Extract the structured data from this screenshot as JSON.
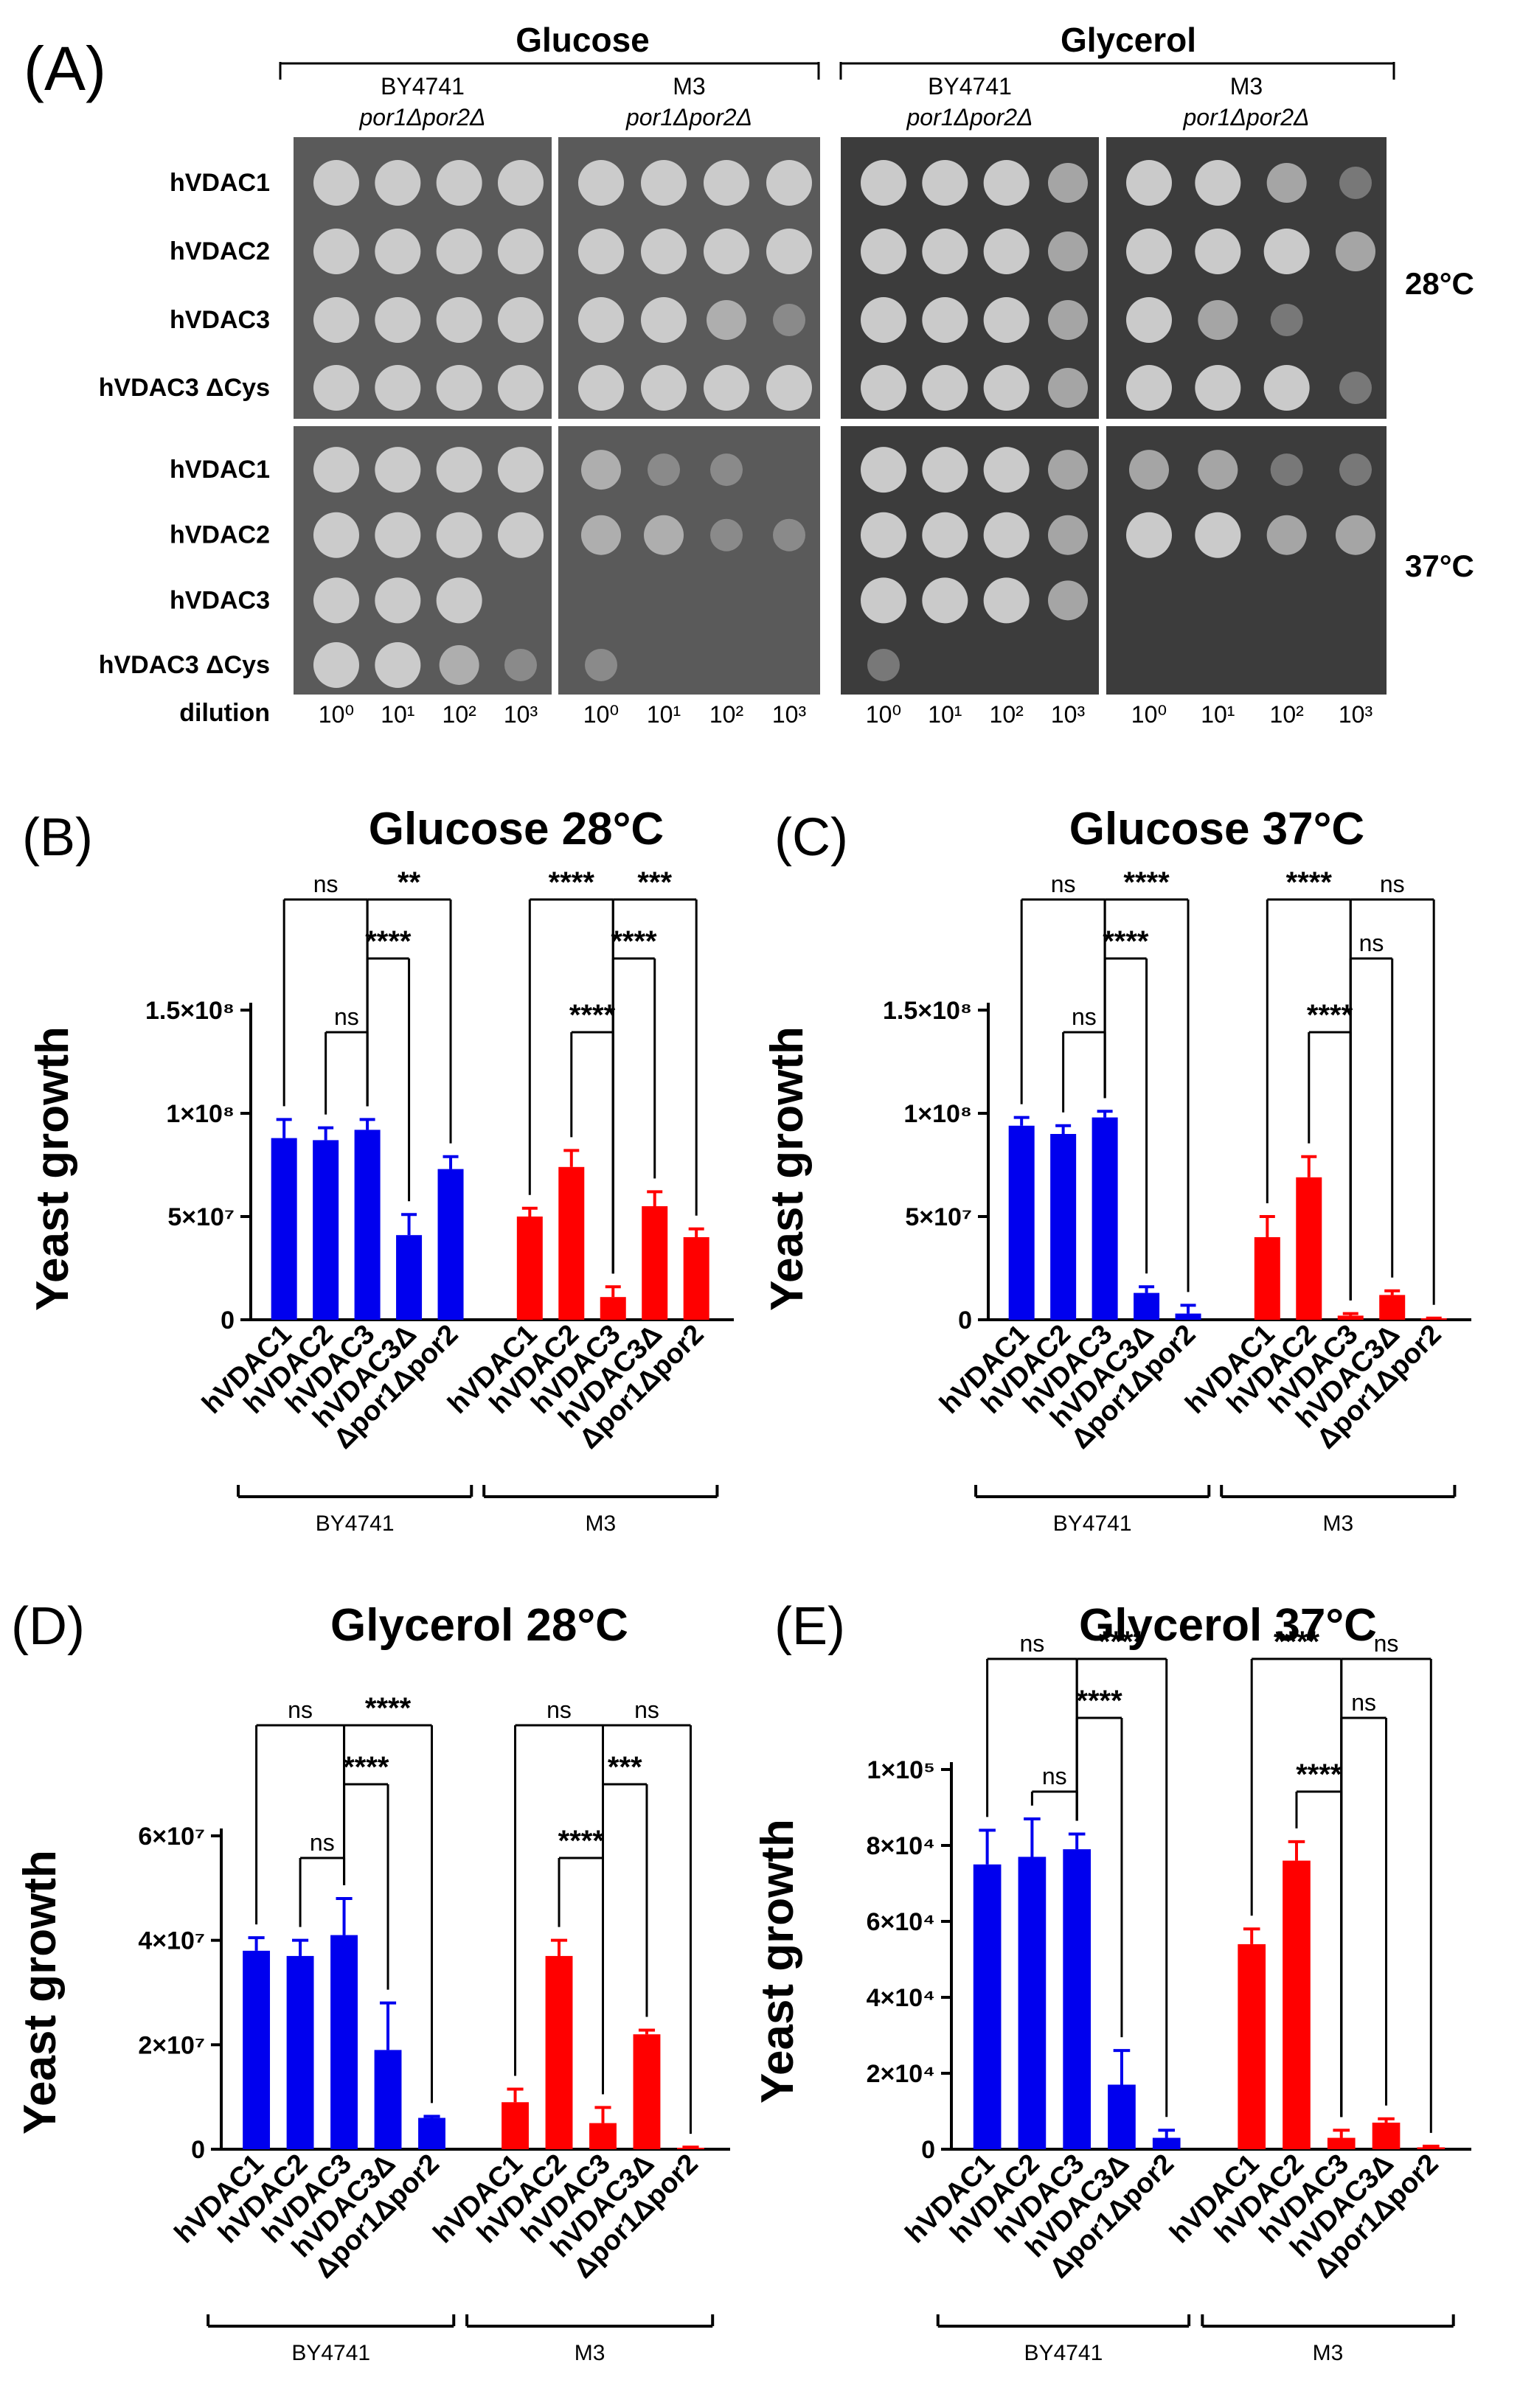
{
  "colors": {
    "blue": "#0000ee",
    "red": "#ff0000",
    "plate_dark": "#3c3c3c",
    "plate_top": "#5a5a5a",
    "colony": "#d2d2d2"
  },
  "panelA": {
    "letter": "(A)",
    "media": [
      "Glucose",
      "Glycerol"
    ],
    "plate_strains": [
      {
        "name": "BY4741",
        "genotype": "por1Δpor2Δ"
      },
      {
        "name": "M3",
        "genotype": "por1Δpor2Δ"
      },
      {
        "name": "BY4741",
        "genotype": "por1Δpor2Δ"
      },
      {
        "name": "M3",
        "genotype": "por1Δpor2Δ"
      }
    ],
    "row_labels": [
      "hVDAC1",
      "hVDAC2",
      "hVDAC3",
      "hVDAC3 ΔCys"
    ],
    "temperatures": [
      "28°C",
      "37°C"
    ],
    "dilution_label": "dilution",
    "dilution_ticks": [
      "10⁰",
      "10¹",
      "10²",
      "10³"
    ],
    "growth_scores": {
      "28": [
        [
          [
            3,
            3,
            3,
            3
          ],
          [
            3,
            3,
            3,
            3
          ],
          [
            3,
            3,
            3,
            3
          ],
          [
            3,
            3,
            3,
            3
          ]
        ],
        [
          [
            3,
            3,
            3,
            3
          ],
          [
            3,
            3,
            3,
            3
          ],
          [
            3,
            3,
            2,
            1
          ],
          [
            3,
            3,
            3,
            3
          ]
        ],
        [
          [
            3,
            3,
            3,
            2
          ],
          [
            3,
            3,
            3,
            2
          ],
          [
            3,
            3,
            3,
            2
          ],
          [
            3,
            3,
            3,
            2
          ]
        ],
        [
          [
            3,
            3,
            2,
            1
          ],
          [
            3,
            3,
            3,
            2
          ],
          [
            3,
            2,
            1,
            0
          ],
          [
            3,
            3,
            3,
            1
          ]
        ]
      ],
      "37": [
        [
          [
            3,
            3,
            3,
            3
          ],
          [
            3,
            3,
            3,
            3
          ],
          [
            3,
            3,
            3,
            0
          ],
          [
            3,
            3,
            2,
            1
          ]
        ],
        [
          [
            2,
            1,
            1,
            0
          ],
          [
            2,
            2,
            1,
            1
          ],
          [
            0,
            0,
            0,
            0
          ],
          [
            1,
            0,
            0,
            0
          ]
        ],
        [
          [
            3,
            3,
            3,
            2
          ],
          [
            3,
            3,
            3,
            2
          ],
          [
            3,
            3,
            3,
            2
          ],
          [
            1,
            0,
            0,
            0
          ]
        ],
        [
          [
            2,
            2,
            1,
            1
          ],
          [
            3,
            3,
            2,
            2
          ],
          [
            0,
            0,
            0,
            0
          ],
          [
            0,
            0,
            0,
            0
          ]
        ]
      ]
    }
  },
  "chart_data": [
    {
      "id": "B",
      "type": "bar",
      "letter": "(B)",
      "title": "Glucose 28°C",
      "ylabel": "Yeast growth",
      "ylim": [
        0,
        150000000
      ],
      "yticks": [
        {
          "value": 0,
          "label": "0"
        },
        {
          "value": 50000000,
          "label": "5×10⁷"
        },
        {
          "value": 100000000,
          "label": "1×10⁸"
        },
        {
          "value": 150000000,
          "label": "1.5×10⁸"
        }
      ],
      "categories": [
        "hVDAC1",
        "hVDAC2",
        "hVDAC3",
        "hVDAC3Δ",
        "Δpor1Δpor2"
      ],
      "groups": [
        "BY4741",
        "M3"
      ],
      "series": [
        {
          "name": "BY4741",
          "color": "blue",
          "values": [
            88000000,
            87000000,
            92000000,
            41000000,
            73000000
          ],
          "errors": [
            9000000,
            6000000,
            5000000,
            10000000,
            6000000
          ]
        },
        {
          "name": "M3",
          "color": "red",
          "values": [
            50000000,
            74000000,
            11000000,
            55000000,
            40000000
          ],
          "errors": [
            4000000,
            8000000,
            5000000,
            7000000,
            4000000
          ]
        }
      ],
      "comparisons": [
        {
          "group": 0,
          "a": 0,
          "b": 2,
          "label": "ns"
        },
        {
          "group": 0,
          "a": 1,
          "b": 2,
          "label": "ns"
        },
        {
          "group": 0,
          "a": 2,
          "b": 3,
          "label": "****"
        },
        {
          "group": 0,
          "a": 2,
          "b": 4,
          "label": "**"
        },
        {
          "group": 1,
          "a": 0,
          "b": 2,
          "label": "****"
        },
        {
          "group": 1,
          "a": 1,
          "b": 2,
          "label": "****"
        },
        {
          "group": 1,
          "a": 2,
          "b": 3,
          "label": "****"
        },
        {
          "group": 1,
          "a": 2,
          "b": 4,
          "label": "***"
        }
      ]
    },
    {
      "id": "C",
      "type": "bar",
      "letter": "(C)",
      "title": "Glucose 37°C",
      "ylabel": "Yeast growth",
      "ylim": [
        0,
        150000000
      ],
      "yticks": [
        {
          "value": 0,
          "label": "0"
        },
        {
          "value": 50000000,
          "label": "5×10⁷"
        },
        {
          "value": 100000000,
          "label": "1×10⁸"
        },
        {
          "value": 150000000,
          "label": "1.5×10⁸"
        }
      ],
      "categories": [
        "hVDAC1",
        "hVDAC2",
        "hVDAC3",
        "hVDAC3Δ",
        "Δpor1Δpor2"
      ],
      "groups": [
        "BY4741",
        "M3"
      ],
      "series": [
        {
          "name": "BY4741",
          "color": "blue",
          "values": [
            94000000,
            90000000,
            98000000,
            13000000,
            3000000
          ],
          "errors": [
            4000000,
            4000000,
            3000000,
            3000000,
            4000000
          ]
        },
        {
          "name": "M3",
          "color": "red",
          "values": [
            40000000,
            69000000,
            2000000,
            12000000,
            500000
          ],
          "errors": [
            10000000,
            10000000,
            1000000,
            2000000,
            300000
          ]
        }
      ],
      "comparisons": [
        {
          "group": 0,
          "a": 0,
          "b": 2,
          "label": "ns"
        },
        {
          "group": 0,
          "a": 1,
          "b": 2,
          "label": "ns"
        },
        {
          "group": 0,
          "a": 2,
          "b": 3,
          "label": "****"
        },
        {
          "group": 0,
          "a": 2,
          "b": 4,
          "label": "****"
        },
        {
          "group": 1,
          "a": 0,
          "b": 2,
          "label": "****"
        },
        {
          "group": 1,
          "a": 1,
          "b": 2,
          "label": "****"
        },
        {
          "group": 1,
          "a": 2,
          "b": 3,
          "label": "ns"
        },
        {
          "group": 1,
          "a": 2,
          "b": 4,
          "label": "ns"
        }
      ]
    },
    {
      "id": "D",
      "type": "bar",
      "letter": "(D)",
      "title": "Glycerol 28°C",
      "ylabel": "Yeast growth",
      "ylim": [
        0,
        60000000
      ],
      "yticks": [
        {
          "value": 0,
          "label": "0"
        },
        {
          "value": 20000000,
          "label": "2×10⁷"
        },
        {
          "value": 40000000,
          "label": "4×10⁷"
        },
        {
          "value": 60000000,
          "label": "6×10⁷"
        }
      ],
      "categories": [
        "hVDAC1",
        "hVDAC2",
        "hVDAC3",
        "hVDAC3Δ",
        "Δpor1Δpor2"
      ],
      "groups": [
        "BY4741",
        "M3"
      ],
      "series": [
        {
          "name": "BY4741",
          "color": "blue",
          "values": [
            38000000,
            37000000,
            41000000,
            19000000,
            6000000
          ],
          "errors": [
            2500000,
            3000000,
            7000000,
            9000000,
            300000
          ]
        },
        {
          "name": "M3",
          "color": "red",
          "values": [
            9000000,
            37000000,
            5000000,
            22000000,
            200000
          ],
          "errors": [
            2500000,
            3000000,
            3000000,
            800000,
            200000
          ]
        }
      ],
      "comparisons": [
        {
          "group": 0,
          "a": 0,
          "b": 2,
          "label": "ns"
        },
        {
          "group": 0,
          "a": 1,
          "b": 2,
          "label": "ns"
        },
        {
          "group": 0,
          "a": 2,
          "b": 3,
          "label": "****"
        },
        {
          "group": 0,
          "a": 2,
          "b": 4,
          "label": "****"
        },
        {
          "group": 1,
          "a": 0,
          "b": 2,
          "label": "ns"
        },
        {
          "group": 1,
          "a": 1,
          "b": 2,
          "label": "****"
        },
        {
          "group": 1,
          "a": 2,
          "b": 3,
          "label": "***"
        },
        {
          "group": 1,
          "a": 2,
          "b": 4,
          "label": "ns"
        }
      ]
    },
    {
      "id": "E",
      "type": "bar",
      "letter": "(E)",
      "title": "Glycerol 37°C",
      "ylabel": "Yeast growth",
      "ylim": [
        0,
        100000
      ],
      "yticks": [
        {
          "value": 0,
          "label": "0"
        },
        {
          "value": 20000,
          "label": "2×10⁴"
        },
        {
          "value": 40000,
          "label": "4×10⁴"
        },
        {
          "value": 60000,
          "label": "6×10⁴"
        },
        {
          "value": 80000,
          "label": "8×10⁴"
        },
        {
          "value": 100000,
          "label": "1×10⁵"
        }
      ],
      "categories": [
        "hVDAC1",
        "hVDAC2",
        "hVDAC3",
        "hVDAC3Δ",
        "Δpor1Δpor2"
      ],
      "groups": [
        "BY4741",
        "M3"
      ],
      "series": [
        {
          "name": "BY4741",
          "color": "blue",
          "values": [
            75000,
            77000,
            79000,
            17000,
            3000
          ],
          "errors": [
            9000,
            10000,
            4000,
            9000,
            2000
          ]
        },
        {
          "name": "M3",
          "color": "red",
          "values": [
            54000,
            76000,
            3000,
            7000,
            500
          ],
          "errors": [
            4000,
            5000,
            2000,
            1000,
            300
          ]
        }
      ],
      "comparisons": [
        {
          "group": 0,
          "a": 0,
          "b": 2,
          "label": "ns"
        },
        {
          "group": 0,
          "a": 1,
          "b": 2,
          "label": "ns"
        },
        {
          "group": 0,
          "a": 2,
          "b": 3,
          "label": "****"
        },
        {
          "group": 0,
          "a": 2,
          "b": 4,
          "label": "****"
        },
        {
          "group": 1,
          "a": 0,
          "b": 2,
          "label": "****"
        },
        {
          "group": 1,
          "a": 1,
          "b": 2,
          "label": "****"
        },
        {
          "group": 1,
          "a": 2,
          "b": 3,
          "label": "ns"
        },
        {
          "group": 1,
          "a": 2,
          "b": 4,
          "label": "ns"
        }
      ]
    }
  ]
}
